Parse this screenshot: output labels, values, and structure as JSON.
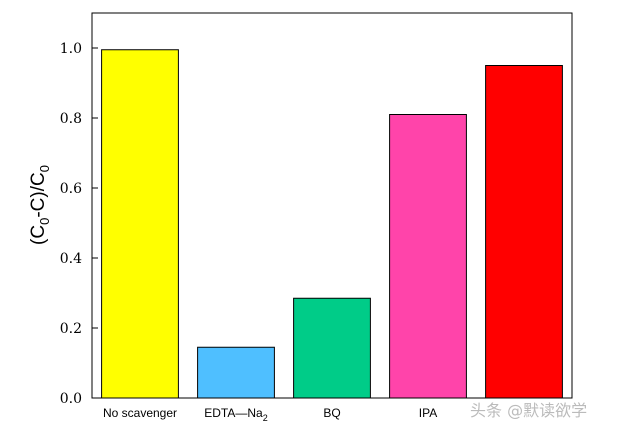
{
  "chart_data": {
    "type": "bar",
    "categories": [
      "No scavenger",
      "EDTA—Na2",
      "BQ",
      "IPA",
      ""
    ],
    "category_display": [
      {
        "text": "No scavenger",
        "sub": ""
      },
      {
        "text": "EDTA—Na",
        "sub": "2"
      },
      {
        "text": "BQ",
        "sub": ""
      },
      {
        "text": "IPA",
        "sub": ""
      },
      {
        "text": "",
        "sub": ""
      }
    ],
    "values": [
      0.995,
      0.145,
      0.285,
      0.81,
      0.95
    ],
    "colors": [
      "#FFFF00",
      "#4FBFFF",
      "#00CC88",
      "#FF44AA",
      "#FF0000"
    ],
    "ylabel": "(C0-C)/C0",
    "ylabel_parts": {
      "p1": "(C",
      "s1": "0",
      "p2": "-C)/C",
      "s2": "0"
    },
    "yticks": [
      "0.0",
      "0.2",
      "0.4",
      "0.6",
      "0.8",
      "1.0"
    ],
    "ylim": [
      0,
      1.1
    ],
    "grid": false,
    "legend": "none",
    "watermark": "头条 @默读欲学"
  }
}
